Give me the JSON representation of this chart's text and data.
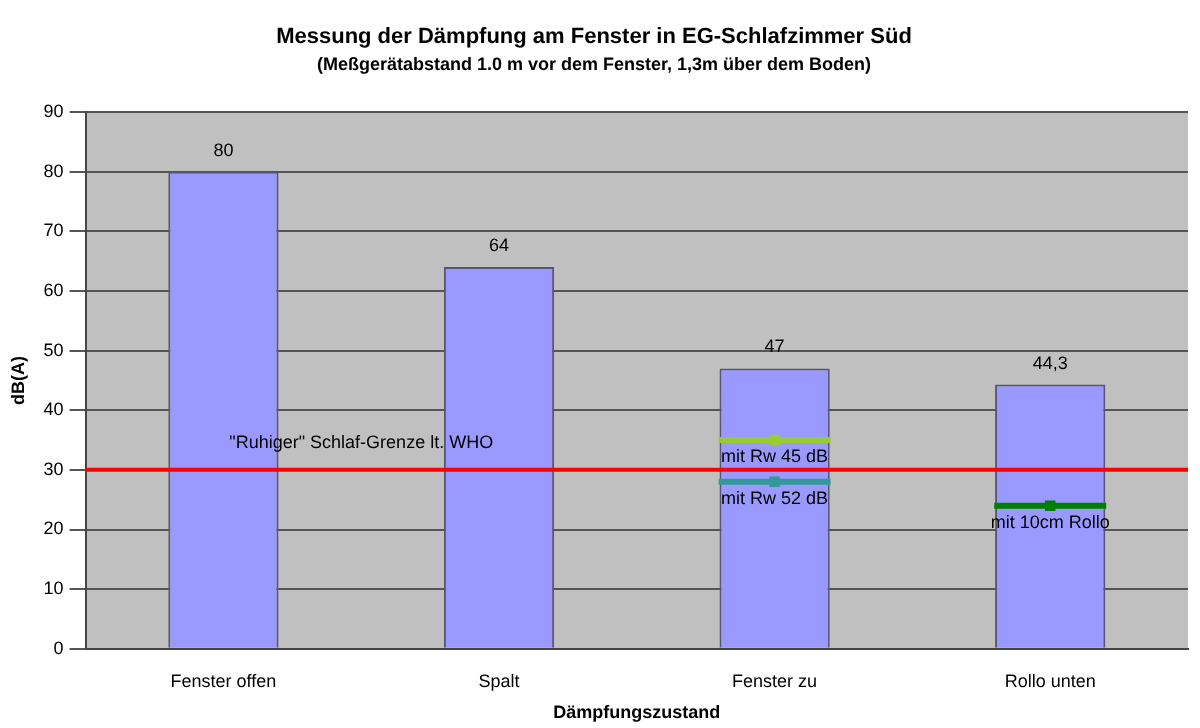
{
  "chart_data": {
    "type": "bar",
    "title": "Messung der Dämpfung am Fenster in EG-Schlafzimmer Süd",
    "subtitle": "(Meßgerätabstand 1.0 m vor dem Fenster, 1,3m über dem Boden)",
    "xlabel": "Dämpfungszustand",
    "ylabel": "dB(A)",
    "categories": [
      "Fenster offen",
      "Spalt",
      "Fenster zu",
      "Rollo unten"
    ],
    "series": [
      {
        "color": "#9999ff",
        "values": [
          80,
          64,
          47,
          44.3
        ],
        "value_labels": [
          "80",
          "64",
          "47",
          "44,3"
        ]
      },
      {
        "type": "scatter",
        "name": "mit Rw 45 dB",
        "color": "#99cc33",
        "x": [
          "Fenster zu"
        ],
        "values": [
          35
        ]
      },
      {
        "type": "scatter",
        "name": "mit Rw 52 dB",
        "color": "#339999",
        "x": [
          "Fenster zu"
        ],
        "values": [
          28
        ]
      },
      {
        "type": "scatter",
        "name": "mit 10cm Rollo",
        "color": "#008000",
        "x": [
          "Rollo unten"
        ],
        "values": [
          24
        ]
      }
    ],
    "ylim": [
      0,
      90
    ],
    "yticks": [
      0,
      10,
      20,
      30,
      40,
      50,
      60,
      70,
      80,
      90
    ],
    "grid": "y",
    "legend": false,
    "ref_lines": [
      {
        "axis": "y",
        "value": 30,
        "label": "\"Ruhiger\" Schlaf-Grenze lt. WHO",
        "color": "#ff0000"
      }
    ]
  }
}
